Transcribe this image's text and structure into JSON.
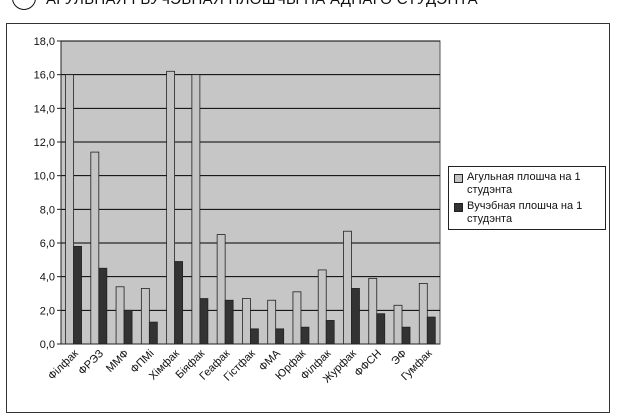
{
  "heading": {
    "text": "АГУЛЬНАЯ І ВУЧЭБНАЯ ПЛОШЧЫ НА АДНАГО СТУДЭНТА"
  },
  "colors": {
    "series1": "#c4c4c4",
    "series2": "#333333",
    "plot_bg": "#c6c6c6",
    "grid": "#000000"
  },
  "chart_data": {
    "type": "bar",
    "categories": [
      "Філфак",
      "ФРЭЗ",
      "ММФ",
      "ФПМі",
      "Хімфак",
      "Біяфак",
      "Геафак",
      "Гістфак",
      "ФМА",
      "Юрфак",
      "Філфак",
      "Журфак",
      "ФФСН",
      "ЭФ",
      "Гумфак"
    ],
    "series": [
      {
        "name": "Агульная плошча на 1 студэнта",
        "values": [
          16.0,
          11.4,
          3.4,
          3.3,
          16.2,
          16.0,
          6.5,
          2.7,
          2.6,
          3.1,
          4.4,
          6.7,
          3.9,
          2.3,
          3.6
        ]
      },
      {
        "name": "Вучэбная плошча на 1 студэнта",
        "values": [
          5.8,
          4.5,
          2.0,
          1.3,
          4.9,
          2.7,
          2.6,
          0.9,
          0.9,
          1.0,
          1.4,
          3.3,
          1.8,
          1.0,
          1.6
        ]
      }
    ],
    "ylim": [
      0,
      18
    ],
    "ytick_labels": [
      "0,0",
      "2,0",
      "4,0",
      "6,0",
      "8,0",
      "10,0",
      "12,0",
      "14,0",
      "16,0",
      "18,0"
    ],
    "grid": true,
    "legend_position": "right"
  }
}
